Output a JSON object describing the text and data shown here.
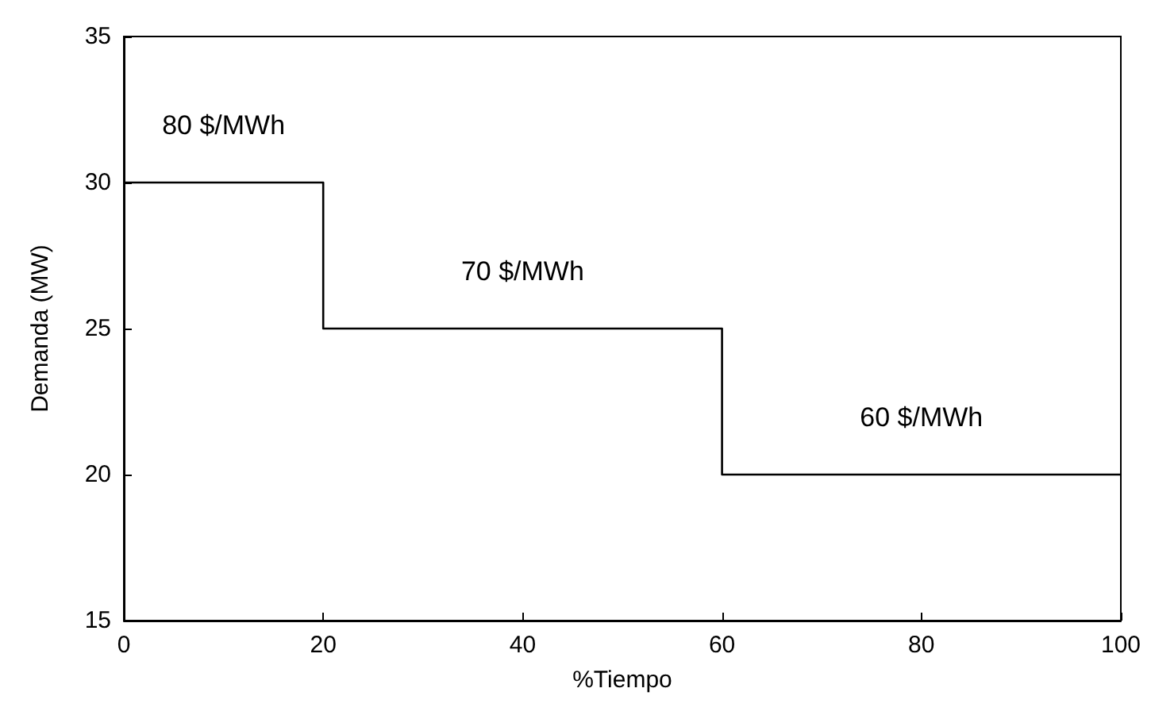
{
  "chart_data": {
    "type": "step",
    "xlabel": "%Tiempo",
    "ylabel": "Demanda (MW)",
    "x": [
      0,
      20,
      60,
      100
    ],
    "series": [
      {
        "color": "#000000",
        "values": [
          30,
          25,
          20,
          20
        ]
      }
    ],
    "xlim": [
      0,
      100
    ],
    "xticks": [
      0,
      20,
      40,
      60,
      80,
      100
    ],
    "ylim": [
      15,
      35
    ],
    "yticks": [
      15,
      20,
      25,
      30,
      35
    ],
    "annotations": [
      "80 $/MWh",
      "70 $/MWh",
      "60 $/MWh"
    ],
    "grid": false,
    "marker": "none",
    "line_style": "solid"
  }
}
